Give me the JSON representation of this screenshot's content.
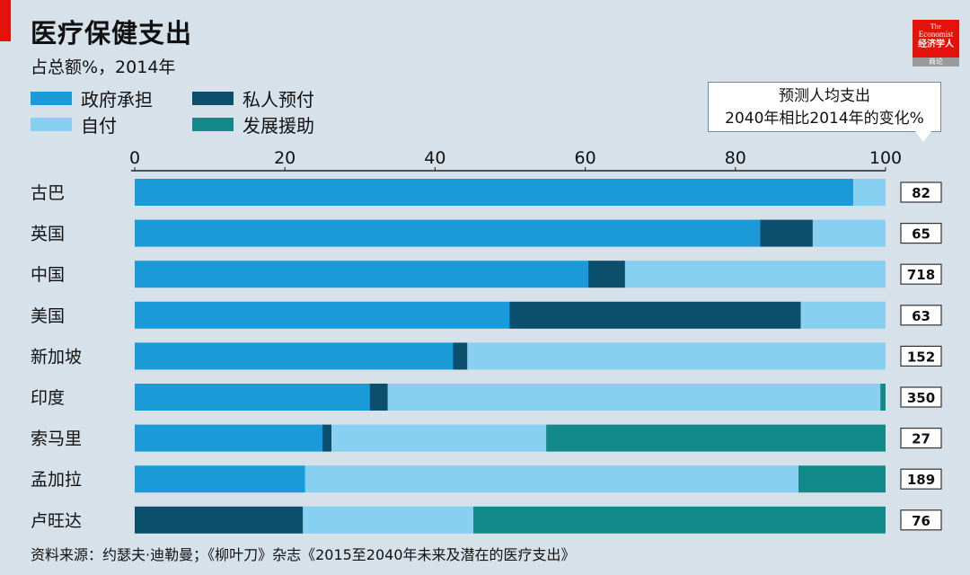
{
  "header": {
    "title": "医疗保健支出",
    "subtitle": "占总额%，2014年"
  },
  "logo": {
    "line1": "The",
    "line2": "Economist",
    "line3": "经济学人",
    "line4": "商论"
  },
  "callout": {
    "line1": "预测人均支出",
    "line2": "2040年相比2014年的变化%"
  },
  "source": "资料来源：约瑟夫·迪勒曼；《柳叶刀》杂志《2015至2040年未来及潜在的医疗支出》",
  "colors": {
    "government": "#1a9ad6",
    "private": "#0b4f6c",
    "out_of_pocket": "#88d0f2",
    "development_aid": "#138a8a",
    "background": "#d6e1ea"
  },
  "chart_data": {
    "type": "bar",
    "orientation": "horizontal",
    "stacked": true,
    "title": "医疗保健支出",
    "subtitle": "占总额%，2014年",
    "xlim": [
      0,
      100
    ],
    "xticks": [
      0,
      20,
      40,
      60,
      80,
      100
    ],
    "legend_position": "top-left",
    "categories": [
      "古巴",
      "英国",
      "中国",
      "美国",
      "新加坡",
      "印度",
      "索马里",
      "孟加拉",
      "卢旺达"
    ],
    "series": [
      {
        "name": "政府承担",
        "color": "#1a9ad6",
        "values": [
          95.7,
          83.3,
          60.4,
          49.9,
          42.4,
          31.3,
          25.0,
          22.7,
          0
        ]
      },
      {
        "name": "私人预付",
        "color": "#0b4f6c",
        "values": [
          0,
          7.0,
          4.9,
          38.8,
          1.9,
          2.4,
          1.2,
          0,
          22.4
        ]
      },
      {
        "name": "自付",
        "color": "#88d0f2",
        "values": [
          4.3,
          9.7,
          34.7,
          11.3,
          55.7,
          65.6,
          28.6,
          65.7,
          22.7
        ]
      },
      {
        "name": "发展援助",
        "color": "#138a8a",
        "values": [
          0,
          0,
          0,
          0,
          0,
          0.7,
          45.2,
          11.6,
          54.9
        ]
      }
    ],
    "projected_change_2040_vs_2014_pct": [
      82,
      65,
      718,
      63,
      152,
      350,
      27,
      189,
      76
    ]
  }
}
